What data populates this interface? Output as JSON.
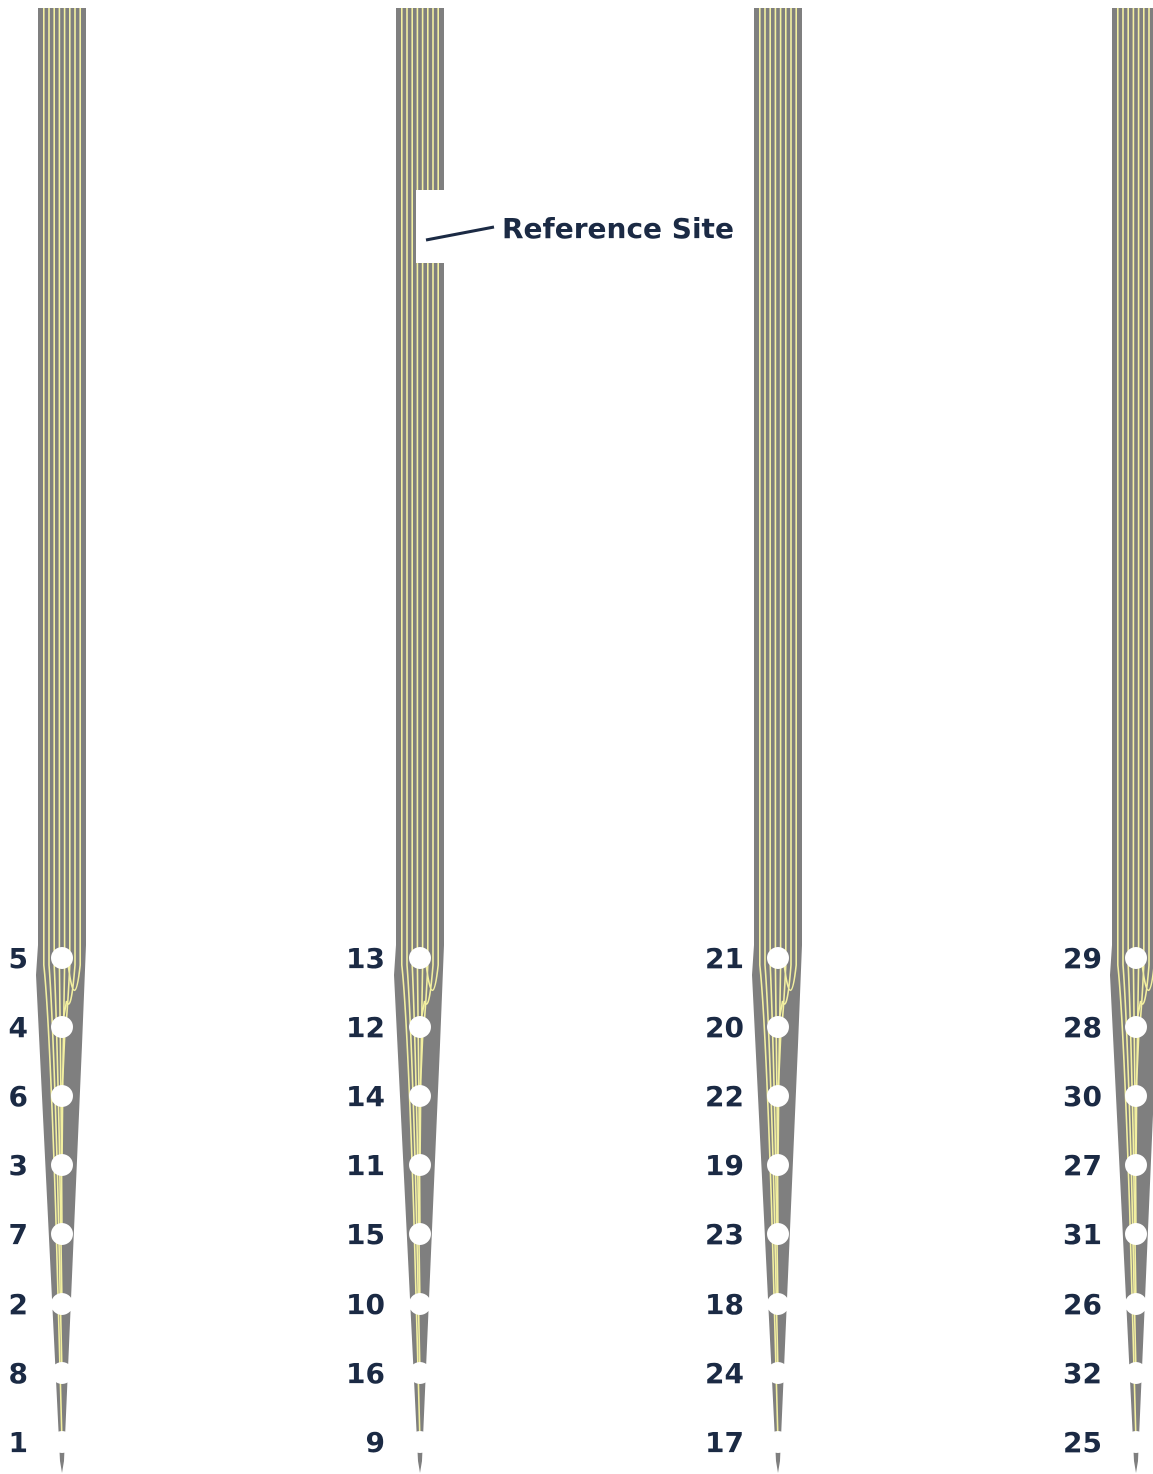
{
  "colors": {
    "shank": "#7f7f7f",
    "trace": "#f3f0a0",
    "site": "#ffffff",
    "label": "#1b2a44"
  },
  "reference": {
    "label": "Reference Site",
    "shank_index": 1
  },
  "shanks": [
    {
      "sites": [
        "5",
        "4",
        "6",
        "3",
        "7",
        "2",
        "8",
        "1"
      ]
    },
    {
      "sites": [
        "13",
        "12",
        "14",
        "11",
        "15",
        "10",
        "16",
        "9"
      ]
    },
    {
      "sites": [
        "21",
        "20",
        "22",
        "19",
        "23",
        "18",
        "24",
        "17"
      ]
    },
    {
      "sites": [
        "29",
        "28",
        "30",
        "27",
        "31",
        "26",
        "32",
        "25"
      ]
    }
  ]
}
